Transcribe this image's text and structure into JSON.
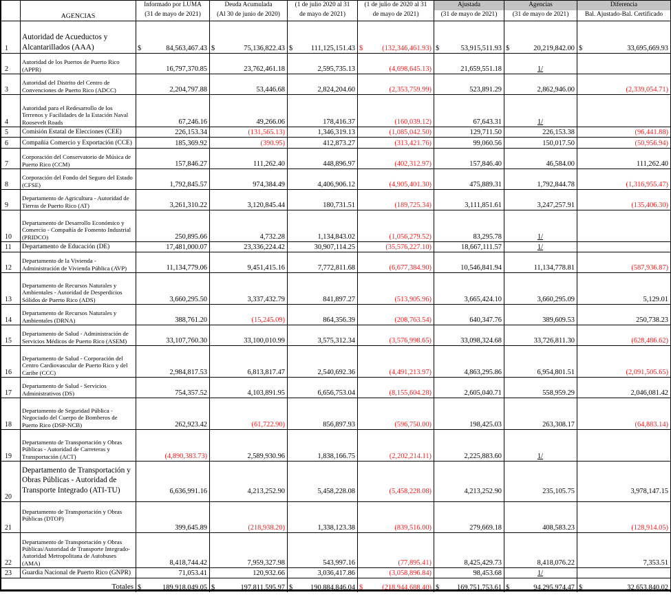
{
  "table": {
    "corner_label": "AGENCIAS",
    "currency": "$",
    "headers": [
      {
        "line1": "Informado por LUMA",
        "line2": "(31 de mayo de 2021)",
        "shaded": false
      },
      {
        "line1": "Deuda Acumulada",
        "line2": "(Al 30 de junio de 2020)",
        "shaded": false
      },
      {
        "line1": "(1 de julio 2020 al 31",
        "line2": "de mayo de 2021)",
        "shaded": false
      },
      {
        "line1": "(1 de julio de 2020 al 31",
        "line2": "de mayo de 2021)",
        "shaded": false
      },
      {
        "line1": "Ajustada",
        "line2": "(31 de mayo de 2021)",
        "shaded": true
      },
      {
        "line1": "Agencias",
        "line2": "(31 de mayo de 2021)",
        "shaded": true
      },
      {
        "line1": "Diferencia",
        "line2": "Bal. Ajustado-Bal. Certificado",
        "shaded": true
      }
    ],
    "rows": [
      {
        "num": "1",
        "agency": "Autoridad de Acueductos y Alcantarillados (AAA)",
        "dollar": true,
        "values": [
          "84,563,467.43",
          "75,136,822.43",
          "111,125,151.43",
          "(132,346,461.93)",
          "53,915,511.93",
          "20,219,842.00",
          "33,695,669.93"
        ]
      },
      {
        "num": "2",
        "agency": "Autoridad de los Puertos de Puerto Rico (APPR)",
        "dollar": false,
        "values": [
          "16,797,370.85",
          "23,762,461.18",
          "2,595,735.13",
          "(4,698,645.13)",
          "21,659,551.18",
          "1/",
          ""
        ]
      },
      {
        "num": "3",
        "agency": "Autoridad del Distrito del Centro de Convenciones de Puerto Rico (ADCC)",
        "dollar": false,
        "values": [
          "2,204,797.88",
          "53,446.68",
          "2,824,204.60",
          "(2,353,759.99)",
          "523,891.29",
          "2,862,946.00",
          "(2,339,054.71)"
        ]
      },
      {
        "num": "4",
        "agency": "Autoridad para el Redesarrollo de los Terrenos y Facilidades de la Estación Naval Roosevelt Roads",
        "dollar": false,
        "values": [
          "67,246.16",
          "49,266.06",
          "178,416.37",
          "(160,039.12)",
          "67,643.31",
          "1/",
          ""
        ]
      },
      {
        "num": "5",
        "agency": "Comisión Estatal de Elecciones (CEE)",
        "dollar": false,
        "values": [
          "226,153.34",
          "(131,565.13)",
          "1,346,319.13",
          "(1,085,042.50)",
          "129,711.50",
          "226,153.38",
          "(96,441.88)"
        ]
      },
      {
        "num": "6",
        "agency": "Compañía Comercio y Exportación (CCE)",
        "dollar": false,
        "values": [
          "185,369.92",
          "(390.95)",
          "412,873.27",
          "(313,421.76)",
          "99,060.56",
          "150,017.50",
          "(50,956.94)"
        ]
      },
      {
        "num": "7",
        "agency": "Corporación del Conservatorio de Música de Puerto Rico (CCM)",
        "dollar": false,
        "values": [
          "157,846.27",
          "111,262.40",
          "448,896.97",
          "(402,312.97)",
          "157,846.40",
          "46,584.00",
          "111,262.40"
        ]
      },
      {
        "num": "8",
        "agency": "Corporación del Fondo del Seguro del Estado (CFSE)",
        "dollar": false,
        "values": [
          "1,792,845.57",
          "974,384.49",
          "4,406,906.12",
          "(4,905,401.30)",
          "475,889.31",
          "1,792,844.78",
          "(1,316,955.47)"
        ]
      },
      {
        "num": "9",
        "agency": "Departamento de Agricultura - Autoridad de Tierras de Puerto Rico (AT)",
        "dollar": false,
        "values": [
          "3,261,310.22",
          "3,120,845.44",
          "180,731.51",
          "(189,725.34)",
          "3,111,851.61",
          "3,247,257.91",
          "(135,406.30)"
        ]
      },
      {
        "num": "10",
        "agency": "Departamento de Desarrollo Económico y Comercio - Compañía de Fomento Industrial (PRIDCO)",
        "dollar": false,
        "values": [
          "250,895.66",
          "4,732.28",
          "1,134,843.02",
          "(1,056,279.52)",
          "83,295.78",
          "1/",
          ""
        ]
      },
      {
        "num": "11",
        "agency": "Departamento de Educación (DE)",
        "dollar": false,
        "values": [
          "17,481,000.07",
          "23,336,224.42",
          "30,907,114.25",
          "(35,576,227.10)",
          "18,667,111.57",
          "1/",
          ""
        ]
      },
      {
        "num": "12",
        "agency": "Departamento de la Vivienda - Administración de Vivienda Pública (AVP)",
        "dollar": false,
        "values": [
          "11,134,779.06",
          "9,451,415.16",
          "7,772,811.68",
          "(6,677,384.90)",
          "10,546,841.94",
          "11,134,778.81",
          "(587,936.87)"
        ]
      },
      {
        "num": "13",
        "agency": "Departamento de Recursos Naturales y Ambientales - Autoridad de Desperdicios Sólidos de Puerto Rico (ADS)",
        "dollar": false,
        "values": [
          "3,660,295.50",
          "3,337,432.79",
          "841,897.27",
          "(513,905.96)",
          "3,665,424.10",
          "3,660,295.09",
          "5,129.01"
        ]
      },
      {
        "num": "14",
        "agency": "Departamento de Recursos Naturales y Ambientales (DRNA)",
        "dollar": false,
        "values": [
          "388,761.20",
          "(15,245.09)",
          "864,356.39",
          "(208,763.54)",
          "640,347.76",
          "389,609.53",
          "250,738.23"
        ]
      },
      {
        "num": "15",
        "agency": "Departamento de Salud - Administración de Servicios Médicos de Puerto Rico (ASEM)",
        "dollar": false,
        "values": [
          "33,107,760.30",
          "33,100,010.99",
          "3,575,312.34",
          "(3,576,998.65)",
          "33,098,324.68",
          "33,726,811.30",
          "(628,486.62)"
        ]
      },
      {
        "num": "16",
        "agency": "Departamento de Salud - Corporación del Centro Cardiovascular de Puerto Rico y del Caribe (CCC)",
        "dollar": false,
        "values": [
          "2,984,817.53",
          "6,813,817.47",
          "2,540,692.36",
          "(4,491,213.97)",
          "4,863,295.86",
          "6,954,801.51",
          "(2,091,505.65)"
        ]
      },
      {
        "num": "17",
        "agency": "Departamento de Salud - Servicios Administrativos (DS)",
        "dollar": false,
        "values": [
          "754,357.52",
          "4,103,891.95",
          "6,656,753.04",
          "(8,155,604.28)",
          "2,605,040.71",
          "558,959.29",
          "2,046,081.42"
        ]
      },
      {
        "num": "18",
        "agency": "Departamento de Seguridad Pública - Negociado del Cuerpo de Bomberos de Puerto Rico (DSP-NCB)",
        "dollar": false,
        "values": [
          "262,923.42",
          "(61,722.90)",
          "856,897.93",
          "(596,750.00)",
          "198,425.03",
          "263,308.17",
          "(64,883.14)"
        ]
      },
      {
        "num": "19",
        "agency": "Departamento de Transportación y Obras Públicas - Autoridad de Carreteras y Transportación (ACT)",
        "dollar": false,
        "values": [
          "(4,890,383.73)",
          "2,589,930.96",
          "1,838,166.75",
          "(2,202,214.11)",
          "2,225,883.60",
          "1/",
          ""
        ]
      },
      {
        "num": "20",
        "agency": "Departamento de Transportación y Obras Públicas - Autoridad de Transporte Integrado (ATI-TU)",
        "dollar": false,
        "values": [
          "6,636,991.16",
          "4,213,252.90",
          "5,458,228.08",
          "(5,458,228.08)",
          "4,213,252.90",
          "235,105.75",
          "3,978,147.15"
        ]
      },
      {
        "num": "21",
        "agency": "Departamento de Transportación y Obras Públicas (DTOP)",
        "dollar": false,
        "values": [
          "399,645.89",
          "(218,938.20)",
          "1,338,123.38",
          "(839,516.00)",
          "279,669.18",
          "408,583.23",
          "(128,914.05)"
        ]
      },
      {
        "num": "22",
        "agency": "Departamento de Transportación y Obras Públicas/Autoridad de Transporte Integrado-Autoridad Metropolitana de Autobuses (AMA)",
        "dollar": false,
        "values": [
          "8,418,744.42",
          "7,959,327.98",
          "543,997.16",
          "(77,895.41)",
          "8,425,429.73",
          "8,418,076.22",
          "7,353.51"
        ]
      },
      {
        "num": "23",
        "agency": "Guardia Nacional de Puerto Rico (GNPR)",
        "dollar": false,
        "values": [
          "71,053.41",
          "120,932.66",
          "3,036,417.86",
          "(3,058,896.84)",
          "98,453.68",
          "1/",
          ""
        ]
      }
    ],
    "totals": {
      "label": "Totales",
      "dollar": true,
      "values": [
        "189,918,049.05",
        "197,811,595.97",
        "190,884,846.04",
        "(218,944,688.40)",
        "169,751,753.61",
        "94,295,974.47",
        "32,653,840.02"
      ]
    }
  },
  "colors": {
    "negative": "#ed1c1c",
    "header_shade": "#c3c3c3"
  }
}
